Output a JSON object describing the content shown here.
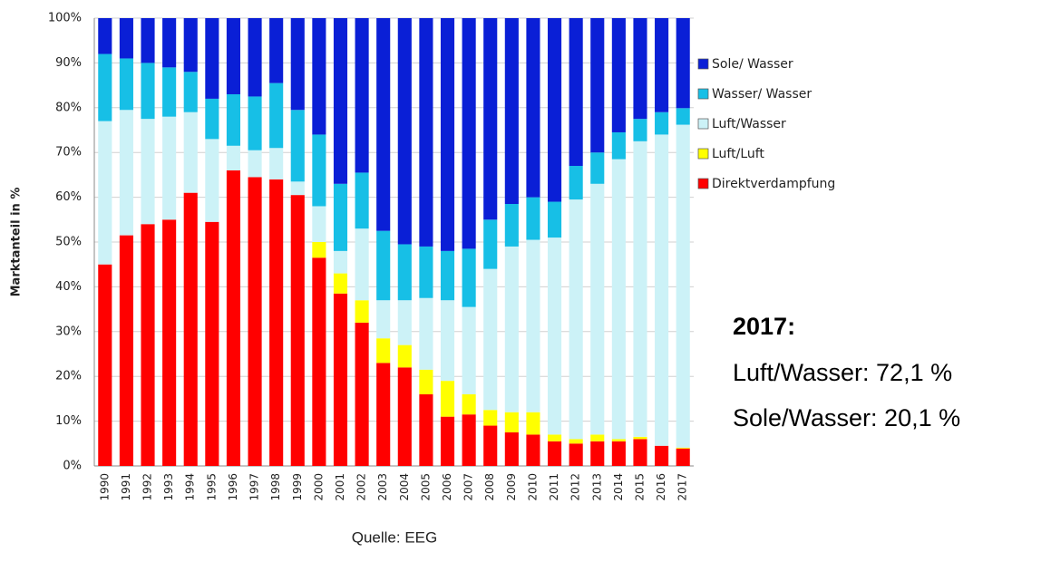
{
  "chart_data": {
    "type": "stacked_bar",
    "ylabel": "Marktanteil in %",
    "categories": [
      "1990",
      "1991",
      "1992",
      "1993",
      "1994",
      "1995",
      "1996",
      "1997",
      "1998",
      "1999",
      "2000",
      "2001",
      "2002",
      "2003",
      "2004",
      "2005",
      "2006",
      "2007",
      "2008",
      "2009",
      "2010",
      "2011",
      "2012",
      "2013",
      "2014",
      "2015",
      "2016",
      "2017"
    ],
    "series": [
      {
        "name": "Direktverdampfung",
        "color": "#ff0000",
        "values": [
          45,
          51.5,
          54,
          55,
          61,
          54.5,
          66,
          64.5,
          64,
          60.5,
          46.5,
          38.5,
          32,
          23,
          22,
          16,
          11,
          11.5,
          9,
          7.5,
          7,
          5.5,
          5,
          5.5,
          5.5,
          6,
          4.5,
          3.9
        ]
      },
      {
        "name": "Luft/Luft",
        "color": "#ffff00",
        "values": [
          0,
          0,
          0,
          0,
          0,
          0,
          0,
          0,
          0,
          0,
          3.5,
          4.5,
          5,
          5.5,
          5,
          5.5,
          8,
          4.5,
          3.5,
          4.5,
          5,
          1.5,
          1,
          1.5,
          0.5,
          0.5,
          0,
          0.2
        ]
      },
      {
        "name": "Luft/Wasser",
        "color": "#ccf2f7",
        "values": [
          32,
          28,
          23.5,
          23,
          18,
          18.5,
          5.5,
          6,
          7,
          3,
          8,
          5,
          16,
          8.5,
          10,
          16,
          18,
          19.5,
          31.5,
          37,
          38.5,
          44,
          53.5,
          56,
          62.5,
          66,
          69.5,
          72.1
        ]
      },
      {
        "name": "Wasser/ Wasser",
        "color": "#17bfe6",
        "values": [
          15,
          11.5,
          12.5,
          11,
          9,
          9,
          11.5,
          12,
          14.5,
          16,
          16,
          15,
          12.5,
          15.5,
          12.5,
          11.5,
          11,
          13,
          11,
          9.5,
          9.5,
          8,
          7.5,
          7,
          6,
          5,
          5,
          3.7
        ]
      },
      {
        "name": "Sole/ Wasser",
        "color": "#0a1fd6",
        "values": [
          8,
          9,
          10,
          11,
          12,
          18,
          17,
          17.5,
          14.5,
          20.5,
          26,
          37,
          34.5,
          47.5,
          50.5,
          51,
          52,
          51.5,
          45,
          41.5,
          40,
          41,
          33,
          30,
          25.5,
          22.5,
          21,
          20.1
        ]
      }
    ],
    "ylim": [
      0,
      100
    ],
    "yticks": [
      {
        "value": 0,
        "label": "0%"
      },
      {
        "value": 10,
        "label": "10%"
      },
      {
        "value": 20,
        "label": "20%"
      },
      {
        "value": 30,
        "label": "30%"
      },
      {
        "value": 40,
        "label": "40%"
      },
      {
        "value": 50,
        "label": "50%"
      },
      {
        "value": 60,
        "label": "60%"
      },
      {
        "value": 70,
        "label": "70%"
      },
      {
        "value": 80,
        "label": "80%"
      },
      {
        "value": 90,
        "label": "90%"
      },
      {
        "value": 100,
        "label": "100%"
      }
    ],
    "grid": true,
    "legend": "right",
    "annotations": [
      "2017:",
      "Luft/Wasser: 72,1 %",
      "Sole/Wasser: 20,1 %"
    ],
    "source": "Quelle: EEG"
  }
}
